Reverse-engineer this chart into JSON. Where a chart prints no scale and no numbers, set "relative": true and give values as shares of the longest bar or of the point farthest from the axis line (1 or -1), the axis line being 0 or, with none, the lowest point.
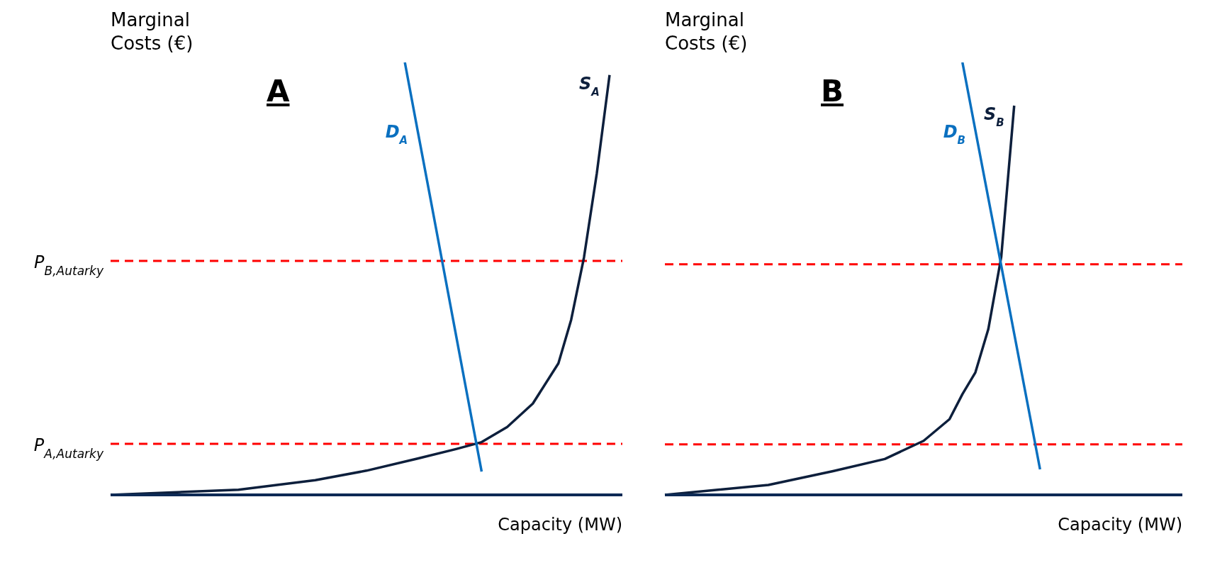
{
  "chart_data": [
    {
      "type": "line",
      "title": "A",
      "xlabel": "Capacity (MW)",
      "ylabel": "Marginal Costs (€)",
      "relative": true,
      "marker": "none",
      "categories": [
        null,
        null,
        null,
        null,
        null,
        null,
        null,
        null,
        null,
        null,
        null,
        null,
        null,
        null,
        null,
        null,
        null,
        null,
        null,
        null,
        null,
        null,
        null,
        null,
        null,
        null,
        null,
        null,
        null,
        null,
        null,
        null,
        null,
        null,
        null,
        null,
        null,
        null,
        null,
        null,
        null
      ],
      "series": [
        {
          "name": "S$_{A}$",
          "color": "#0d1f3c",
          "values": [
            0,
            null,
            null,
            null,
            null,
            null,
            null,
            null,
            null,
            null,
            0.012,
            null,
            null,
            null,
            null,
            null,
            0.034,
            null,
            null,
            null,
            0.056,
            null,
            null,
            null,
            0.084,
            null,
            null,
            0.106,
            null,
            0.122,
            null,
            0.157,
            null,
            0.211,
            null,
            0.304,
            0.405,
            0.549,
            0.743,
            0.971,
            null
          ]
        },
        {
          "name": "D$_{A}$",
          "color": "#0a70c0",
          "values": [
            null,
            null,
            null,
            null,
            null,
            null,
            null,
            null,
            null,
            null,
            null,
            null,
            null,
            null,
            null,
            null,
            null,
            null,
            null,
            null,
            null,
            null,
            null,
            1,
            0.842,
            0.685,
            0.527,
            0.369,
            0.211,
            0.054,
            null,
            null,
            null,
            null,
            null,
            null,
            null,
            null,
            null,
            null,
            null
          ]
        }
      ],
      "ref_lines": [
        {
          "axis": "y",
          "value": 0.541,
          "label": "P$_{B,Autarky}$",
          "color": "#ff0000",
          "line_style": "dashed"
        },
        {
          "axis": "y",
          "value": 0.118,
          "label": "P$_{A,Autarky}$",
          "color": "#ff0000",
          "line_style": "dashed"
        }
      ]
    },
    {
      "type": "line",
      "title": "B",
      "xlabel": "Capacity (MW)",
      "ylabel": "Marginal Costs (€)",
      "relative": true,
      "marker": "none",
      "categories": [
        null,
        null,
        null,
        null,
        null,
        null,
        null,
        null,
        null,
        null,
        null,
        null,
        null,
        null,
        null,
        null,
        null,
        null,
        null,
        null,
        null,
        null,
        null,
        null,
        null,
        null,
        null,
        null,
        null,
        null,
        null,
        null,
        null,
        null,
        null,
        null,
        null,
        null,
        null,
        null,
        null
      ],
      "series": [
        {
          "name": "S$_{B}$",
          "color": "#0d1f3c",
          "values": [
            0,
            null,
            null,
            null,
            null,
            null,
            null,
            null,
            0.023,
            null,
            null,
            null,
            null,
            0.055,
            null,
            null,
            null,
            0.083,
            null,
            null,
            0.125,
            null,
            0.175,
            0.233,
            0.283,
            0.383,
            0.55,
            0.9,
            null,
            null,
            null,
            null,
            null,
            null,
            null,
            null,
            null,
            null,
            null,
            null,
            null
          ]
        },
        {
          "name": "D$_{B}$",
          "color": "#0a70c0",
          "values": [
            null,
            null,
            null,
            null,
            null,
            null,
            null,
            null,
            null,
            null,
            null,
            null,
            null,
            null,
            null,
            null,
            null,
            null,
            null,
            null,
            null,
            null,
            null,
            1,
            0.843,
            0.686,
            0.53,
            0.373,
            0.216,
            0.059,
            null,
            null,
            null,
            null,
            null,
            null,
            null,
            null,
            null,
            null,
            null
          ]
        }
      ],
      "ref_lines": [
        {
          "axis": "y",
          "value": 0.533,
          "color": "#ff0000",
          "line_style": "dashed"
        },
        {
          "axis": "y",
          "value": 0.117,
          "color": "#ff0000",
          "line_style": "dashed"
        }
      ]
    }
  ]
}
